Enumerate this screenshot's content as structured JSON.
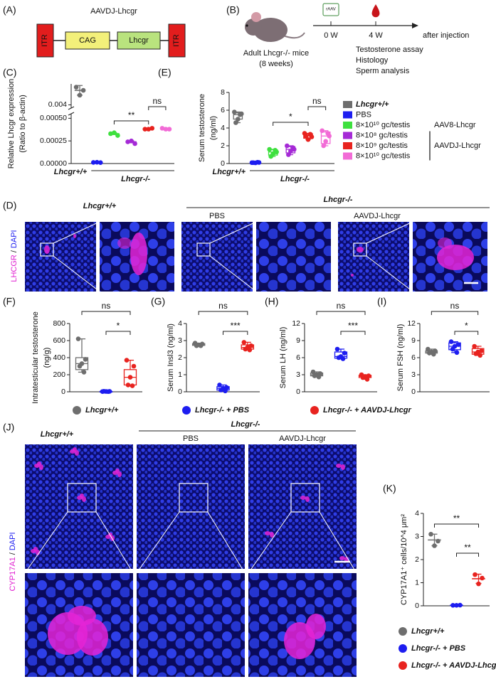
{
  "A": {
    "label": "(A)",
    "construct": "AAVDJ-Lhcgr",
    "elements": [
      "ITR",
      "CAG",
      "Lhcgr",
      "ITR"
    ]
  },
  "B": {
    "label": "(B)",
    "vector_icon": "rAAV",
    "mice": "Adult Lhcgr-/- mice",
    "age": "(8 weeks)",
    "timepoints": [
      "0 W",
      "4 W"
    ],
    "timeline_label": "after injection",
    "assays": [
      "Testosterone assay",
      "Histology",
      "Sperm analysis"
    ]
  },
  "D": {
    "label": "(D)",
    "genotype_wt": "Lhcgr+/+",
    "genotype_ko": "Lhcgr-/-",
    "groups": [
      "PBS",
      "AAVDJ-Lhcgr"
    ],
    "stain": [
      "LHCGR",
      "/",
      "DAPI"
    ]
  },
  "J": {
    "label": "(J)",
    "genotype_wt": "Lhcgr+/+",
    "genotype_ko": "Lhcgr-/-",
    "groups": [
      "PBS",
      "AAVDJ-Lhcgr"
    ],
    "stain": [
      "CYP17A1",
      "/",
      "DAPI"
    ]
  },
  "shared_legend": [
    "Lhcgr+/+",
    "Lhcgr-/- + PBS",
    "Lhcgr-/- + AAVDJ-Lhcgr"
  ],
  "chart_data": [
    {
      "panel": "(C)",
      "type": "dotplot",
      "ylabel": [
        "Relative Lhcgr expression",
        "(Ratio to β-actin)"
      ],
      "ylim": [
        0,
        0.0053
      ],
      "axis_break": [
        0.00055,
        0.0038
      ],
      "yticks": [
        {
          "value": 0,
          "label": "0.00000"
        },
        {
          "value": 0.00025,
          "label": "0.00025"
        },
        {
          "value": 0.0005,
          "label": "0.00050"
        },
        {
          "value": 0.004,
          "label": "0.004"
        }
      ],
      "x_labels": [
        "Lhcgr+/+",
        "Lhcgr-/-"
      ],
      "groups": [
        {
          "color": "#6e6e6e",
          "points": [
            0.0051,
            0.0049,
            0.0046
          ],
          "mean": 0.0049,
          "sd": 0.0003
        },
        {
          "color": "#1d1df0",
          "points": [
            1.2e-05,
            1e-05,
            1.4e-05
          ],
          "mean": 1.2e-05,
          "sd": 2e-06
        },
        {
          "color": "#3ee03e",
          "points": [
            0.00033,
            0.00031,
            0.00034
          ],
          "mean": 0.00033,
          "sd": 1e-05
        },
        {
          "color": "#a52ad6",
          "points": [
            0.00024,
            0.00022,
            0.00025
          ],
          "mean": 0.00024,
          "sd": 1e-05
        },
        {
          "color": "#e8231f",
          "points": [
            0.00038,
            0.00039,
            0.00038
          ],
          "mean": 0.00038,
          "sd": 5e-06
        },
        {
          "color": "#f26bd6",
          "points": [
            0.00039,
            0.00038,
            0.00038
          ],
          "mean": 0.00038,
          "sd": 5e-06
        }
      ],
      "comparisons": [
        {
          "pair": [
            2,
            4
          ],
          "label": "**"
        },
        {
          "pair": [
            4,
            5
          ],
          "label": "ns"
        }
      ]
    },
    {
      "panel": "(E)",
      "type": "box",
      "ylabel": [
        "Serum testosterone",
        "(ng/ml)"
      ],
      "ylim": [
        0,
        8
      ],
      "yticks": [
        0,
        2,
        4,
        6,
        8
      ],
      "x_labels": [
        "Lhcgr+/+",
        "Lhcgr-/-"
      ],
      "groups": [
        {
          "color": "#6e6e6e",
          "points": [
            5.8,
            5.6,
            5.0,
            4.6,
            5.5
          ],
          "box": [
            4.6,
            5.0,
            5.5,
            5.7,
            5.8
          ]
        },
        {
          "color": "#1d1df0",
          "points": [
            0.1,
            0.12,
            0.08,
            0.1,
            0.15
          ],
          "box": [
            0.08,
            0.09,
            0.1,
            0.13,
            0.15
          ]
        },
        {
          "color": "#3ee03e",
          "points": [
            1.6,
            1.3,
            1.1,
            0.8,
            1.5
          ],
          "box": [
            0.8,
            0.95,
            1.3,
            1.55,
            1.6
          ]
        },
        {
          "color": "#a52ad6",
          "points": [
            2.0,
            1.6,
            1.4,
            1.0,
            1.8
          ],
          "box": [
            1.0,
            1.2,
            1.6,
            1.9,
            2.0
          ]
        },
        {
          "color": "#e8231f",
          "points": [
            3.4,
            3.0,
            2.7,
            3.1,
            3.3
          ],
          "box": [
            2.7,
            2.85,
            3.1,
            3.35,
            3.4
          ]
        },
        {
          "color": "#f26bd6",
          "points": [
            3.7,
            3.1,
            2.5,
            2.0,
            3.4
          ],
          "box": [
            2.0,
            2.25,
            3.1,
            3.55,
            3.7
          ]
        }
      ],
      "comparisons": [
        {
          "pair": [
            2,
            4
          ],
          "label": "*"
        },
        {
          "pair": [
            4,
            5
          ],
          "label": "ns"
        }
      ],
      "legend": {
        "entries": [
          "Lhcgr+/+",
          "PBS",
          "8×10¹⁰ gc/testis",
          "8×10⁸ gc/testis",
          "8×10⁹ gc/testis",
          "8×10¹⁰ gc/testis"
        ],
        "brackets": [
          "AAV8-Lhcgr",
          "AAVDJ-Lhcgr"
        ]
      }
    },
    {
      "panel": "(F)",
      "type": "box",
      "ylabel": [
        "Intratesticular testosterone",
        "(ng/g)"
      ],
      "ylim": [
        0,
        800
      ],
      "yticks": [
        0,
        200,
        400,
        600,
        800
      ],
      "groups": [
        {
          "color": "#6e6e6e",
          "points": [
            620,
            380,
            330,
            300,
            230
          ],
          "box": [
            230,
            260,
            330,
            400,
            620
          ]
        },
        {
          "color": "#1d1df0",
          "points": [
            3,
            5,
            4,
            6,
            2
          ],
          "box": [
            2,
            3,
            4,
            5,
            6
          ]
        },
        {
          "color": "#e8231f",
          "points": [
            370,
            300,
            170,
            80,
            70
          ],
          "box": [
            70,
            80,
            170,
            260,
            370
          ]
        }
      ],
      "comparisons": [
        {
          "pair": [
            1,
            2
          ],
          "label": "*"
        },
        {
          "pair": [
            0,
            2
          ],
          "label": "ns"
        }
      ]
    },
    {
      "panel": "(G)",
      "type": "box",
      "ylabel": [
        "Serum Insl3 (ng/ml)"
      ],
      "ylim": [
        0,
        4
      ],
      "yticks": [
        0,
        1,
        2,
        3,
        4
      ],
      "groups": [
        {
          "color": "#6e6e6e",
          "points": [
            2.85,
            2.8,
            2.75,
            2.7,
            2.7
          ],
          "box": [
            2.7,
            2.72,
            2.75,
            2.82,
            2.85
          ]
        },
        {
          "color": "#1d1df0",
          "points": [
            0.4,
            0.25,
            0.2,
            0.1,
            0.05
          ],
          "box": [
            0.05,
            0.1,
            0.2,
            0.3,
            0.4
          ]
        },
        {
          "color": "#e8231f",
          "points": [
            2.9,
            2.7,
            2.6,
            2.5,
            2.45
          ],
          "box": [
            2.45,
            2.5,
            2.6,
            2.75,
            2.9
          ]
        }
      ],
      "comparisons": [
        {
          "pair": [
            1,
            2
          ],
          "label": "***"
        },
        {
          "pair": [
            0,
            2
          ],
          "label": "ns"
        }
      ]
    },
    {
      "panel": "(H)",
      "type": "box",
      "ylabel": [
        "Serum LH (ng/ml)"
      ],
      "ylim": [
        0,
        12
      ],
      "yticks": [
        0,
        3,
        6,
        9,
        12
      ],
      "groups": [
        {
          "color": "#6e6e6e",
          "points": [
            3.5,
            3.2,
            3.0,
            2.8,
            2.6
          ],
          "box": [
            2.6,
            2.8,
            3.0,
            3.3,
            3.5
          ]
        },
        {
          "color": "#1d1df0",
          "points": [
            7.5,
            6.8,
            6.2,
            6.0,
            5.8
          ],
          "box": [
            5.8,
            5.9,
            6.2,
            7.0,
            7.5
          ]
        },
        {
          "color": "#e8231f",
          "points": [
            3.0,
            2.8,
            2.7,
            2.5,
            2.2
          ],
          "box": [
            2.2,
            2.5,
            2.7,
            2.9,
            3.0
          ]
        }
      ],
      "comparisons": [
        {
          "pair": [
            1,
            2
          ],
          "label": "***"
        },
        {
          "pair": [
            0,
            2
          ],
          "label": "ns"
        }
      ]
    },
    {
      "panel": "(I)",
      "type": "box",
      "ylabel": [
        "Serum FSH (ng/ml)"
      ],
      "ylim": [
        0,
        12
      ],
      "yticks": [
        0,
        3,
        6,
        9,
        12
      ],
      "groups": [
        {
          "color": "#6e6e6e",
          "points": [
            7.5,
            7.2,
            7.0,
            6.8,
            6.6
          ],
          "box": [
            6.6,
            6.8,
            7.0,
            7.2,
            7.5
          ]
        },
        {
          "color": "#1d1df0",
          "points": [
            8.8,
            8.3,
            8.0,
            7.5,
            6.9
          ],
          "box": [
            6.9,
            7.4,
            8.0,
            8.6,
            8.8
          ]
        },
        {
          "color": "#e8231f",
          "points": [
            8.0,
            7.2,
            7.0,
            6.7,
            6.4
          ],
          "box": [
            6.4,
            6.6,
            7.0,
            7.6,
            8.0
          ]
        }
      ],
      "comparisons": [
        {
          "pair": [
            1,
            2
          ],
          "label": "*"
        },
        {
          "pair": [
            0,
            2
          ],
          "label": "ns"
        }
      ]
    },
    {
      "panel": "(K)",
      "type": "dotplot",
      "ylabel": [
        "CYP17A1⁺ cells/10^4 μm²"
      ],
      "ylim": [
        0,
        4
      ],
      "yticks": [
        0,
        1,
        2,
        3,
        4
      ],
      "groups": [
        {
          "color": "#6e6e6e",
          "points": [
            3.1,
            2.8,
            2.6
          ],
          "mean": 2.85,
          "sd": 0.25
        },
        {
          "color": "#1d1df0",
          "points": [
            0.02,
            0.03,
            0.02
          ],
          "mean": 0.02,
          "sd": 0.005
        },
        {
          "color": "#e8231f",
          "points": [
            1.35,
            1.2,
            0.95
          ],
          "mean": 1.17,
          "sd": 0.2
        }
      ],
      "comparisons": [
        {
          "pair": [
            1,
            2
          ],
          "label": "**"
        },
        {
          "pair": [
            0,
            2
          ],
          "label": "**"
        }
      ],
      "legend": {
        "entries": [
          "Lhcgr+/+",
          "Lhcgr-/- + PBS",
          "Lhcgr-/- + AAVDJ-Lhcgr"
        ]
      }
    }
  ]
}
